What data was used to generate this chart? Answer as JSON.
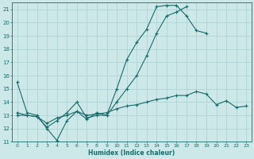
{
  "x": [
    0,
    1,
    2,
    3,
    4,
    5,
    6,
    7,
    8,
    9,
    10,
    11,
    12,
    13,
    14,
    15,
    16,
    17,
    18,
    19,
    20,
    21,
    22,
    23
  ],
  "line1": [
    15.5,
    13.2,
    13.0,
    12.0,
    11.1,
    12.6,
    13.3,
    12.7,
    13.2,
    13.0,
    15.0,
    17.2,
    18.5,
    19.5,
    21.2,
    21.3,
    21.3,
    20.5,
    19.4,
    19.2,
    null,
    null,
    null,
    null
  ],
  "line2": [
    13.2,
    13.0,
    12.9,
    12.1,
    12.6,
    13.2,
    14.0,
    12.8,
    13.0,
    13.0,
    14.0,
    15.0,
    16.0,
    17.5,
    19.2,
    20.5,
    20.8,
    21.2,
    null,
    null,
    null,
    null,
    null,
    null
  ],
  "line3": [
    13.0,
    13.0,
    12.9,
    12.4,
    12.8,
    13.0,
    13.3,
    13.0,
    13.1,
    13.2,
    13.5,
    13.7,
    13.8,
    14.0,
    14.2,
    14.3,
    14.5,
    14.5,
    14.8,
    14.6,
    13.8,
    14.1,
    13.6,
    13.7
  ],
  "bg_color": "#cce8e8",
  "grid_color": "#aacfcf",
  "line_color": "#1a6b6b",
  "xlabel": "Humidex (Indice chaleur)",
  "ylim": [
    11,
    21.5
  ],
  "xlim": [
    -0.5,
    23.5
  ],
  "yticks": [
    11,
    12,
    13,
    14,
    15,
    16,
    17,
    18,
    19,
    20,
    21
  ],
  "xticks": [
    0,
    1,
    2,
    3,
    4,
    5,
    6,
    7,
    8,
    9,
    10,
    11,
    12,
    13,
    14,
    15,
    16,
    17,
    18,
    19,
    20,
    21,
    22,
    23
  ],
  "xtick_labels": [
    "0",
    "1",
    "2",
    "3",
    "4",
    "5",
    "6",
    "7",
    "8",
    "9",
    "10",
    "11",
    "12",
    "13",
    "14",
    "15",
    "16",
    "17",
    "18",
    "19",
    "20",
    "21",
    "22",
    "23"
  ]
}
